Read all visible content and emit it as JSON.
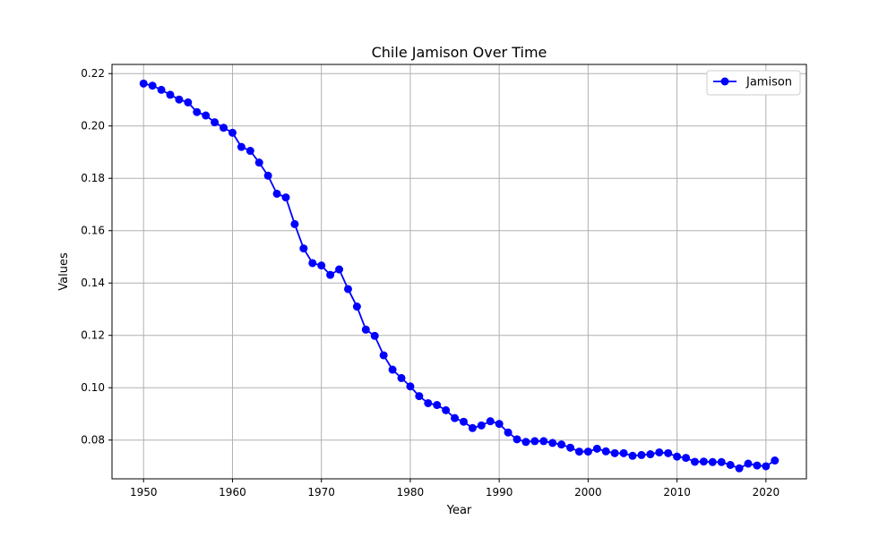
{
  "chart_data": {
    "type": "line",
    "title": "Chile Jamison Over Time",
    "xlabel": "Year",
    "ylabel": "Values",
    "xlim": [
      1946.45,
      2024.55
    ],
    "ylim": [
      0.0652,
      0.2235
    ],
    "xticks": [
      1950,
      1960,
      1970,
      1980,
      1990,
      2000,
      2010,
      2020
    ],
    "yticks": [
      0.08,
      0.1,
      0.12,
      0.14,
      0.16,
      0.18,
      0.2,
      0.22
    ],
    "ytick_labels": [
      "0.08",
      "0.10",
      "0.12",
      "0.14",
      "0.16",
      "0.18",
      "0.20",
      "0.22"
    ],
    "grid": true,
    "legend_position": "top-right",
    "series": [
      {
        "name": "Jamison",
        "color": "#0000ff",
        "marker": "circle",
        "x": [
          1950,
          1951,
          1952,
          1953,
          1954,
          1955,
          1956,
          1957,
          1958,
          1959,
          1960,
          1961,
          1962,
          1963,
          1964,
          1965,
          1966,
          1967,
          1968,
          1969,
          1970,
          1971,
          1972,
          1973,
          1974,
          1975,
          1976,
          1977,
          1978,
          1979,
          1980,
          1981,
          1982,
          1983,
          1984,
          1985,
          1986,
          1987,
          1988,
          1989,
          1990,
          1991,
          1992,
          1993,
          1994,
          1995,
          1996,
          1997,
          1998,
          1999,
          2000,
          2001,
          2002,
          2003,
          2004,
          2005,
          2006,
          2007,
          2008,
          2009,
          2010,
          2011,
          2012,
          2013,
          2014,
          2015,
          2016,
          2017,
          2018,
          2019,
          2020,
          2021
        ],
        "values": [
          0.2162,
          0.2154,
          0.2138,
          0.2119,
          0.2101,
          0.209,
          0.2053,
          0.204,
          0.2014,
          0.1993,
          0.1974,
          0.192,
          0.1905,
          0.186,
          0.181,
          0.1741,
          0.1727,
          0.1625,
          0.1532,
          0.1476,
          0.1467,
          0.1431,
          0.1452,
          0.1377,
          0.131,
          0.1222,
          0.1198,
          0.1124,
          0.1069,
          0.1037,
          0.1005,
          0.0968,
          0.0941,
          0.0934,
          0.0914,
          0.0884,
          0.087,
          0.0846,
          0.0856,
          0.0872,
          0.0862,
          0.0829,
          0.0803,
          0.0793,
          0.0796,
          0.0796,
          0.0789,
          0.0783,
          0.0771,
          0.0756,
          0.0756,
          0.0767,
          0.0757,
          0.075,
          0.075,
          0.074,
          0.0743,
          0.0746,
          0.0753,
          0.075,
          0.0737,
          0.0732,
          0.0717,
          0.0718,
          0.0716,
          0.0716,
          0.0705,
          0.0692,
          0.071,
          0.0703,
          0.07,
          0.0722
        ]
      }
    ]
  }
}
